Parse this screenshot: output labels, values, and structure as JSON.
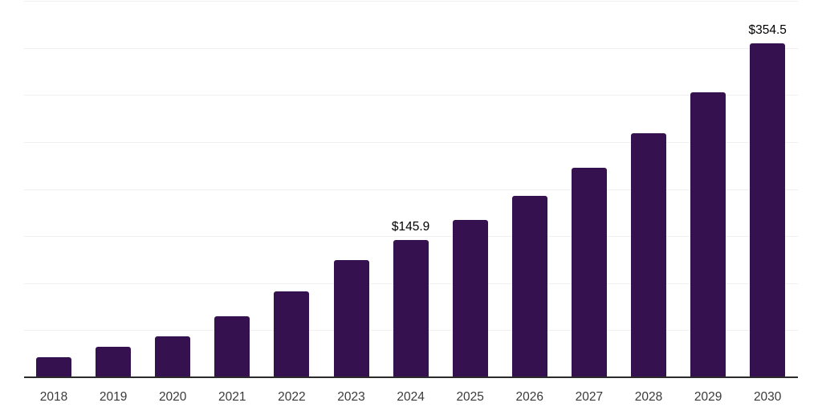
{
  "chart_data": {
    "type": "bar",
    "title": "",
    "xlabel": "",
    "ylabel": "",
    "categories": [
      "2018",
      "2019",
      "2020",
      "2021",
      "2022",
      "2023",
      "2024",
      "2025",
      "2026",
      "2027",
      "2028",
      "2029",
      "2030"
    ],
    "values": [
      21.4,
      32.0,
      43.4,
      65.0,
      91.4,
      124.6,
      145.9,
      167.2,
      192.5,
      222.9,
      259.0,
      302.8,
      354.5
    ],
    "value_labels": [
      "",
      "",
      "",
      "",
      "",
      "",
      "$145.9",
      "",
      "",
      "",
      "",
      "",
      "$354.5"
    ],
    "ylim": [
      0,
      400
    ],
    "grid_step": 50,
    "grid": "on",
    "y_tick_labels": "hidden",
    "legend": "none",
    "colors": {
      "bar": "#36114F",
      "gridline": "#f0f0f0",
      "axis_line": "#2b2b2b",
      "x_tick_label": "#3a3a3a",
      "value_label": "#000000",
      "background": "#ffffff"
    }
  }
}
